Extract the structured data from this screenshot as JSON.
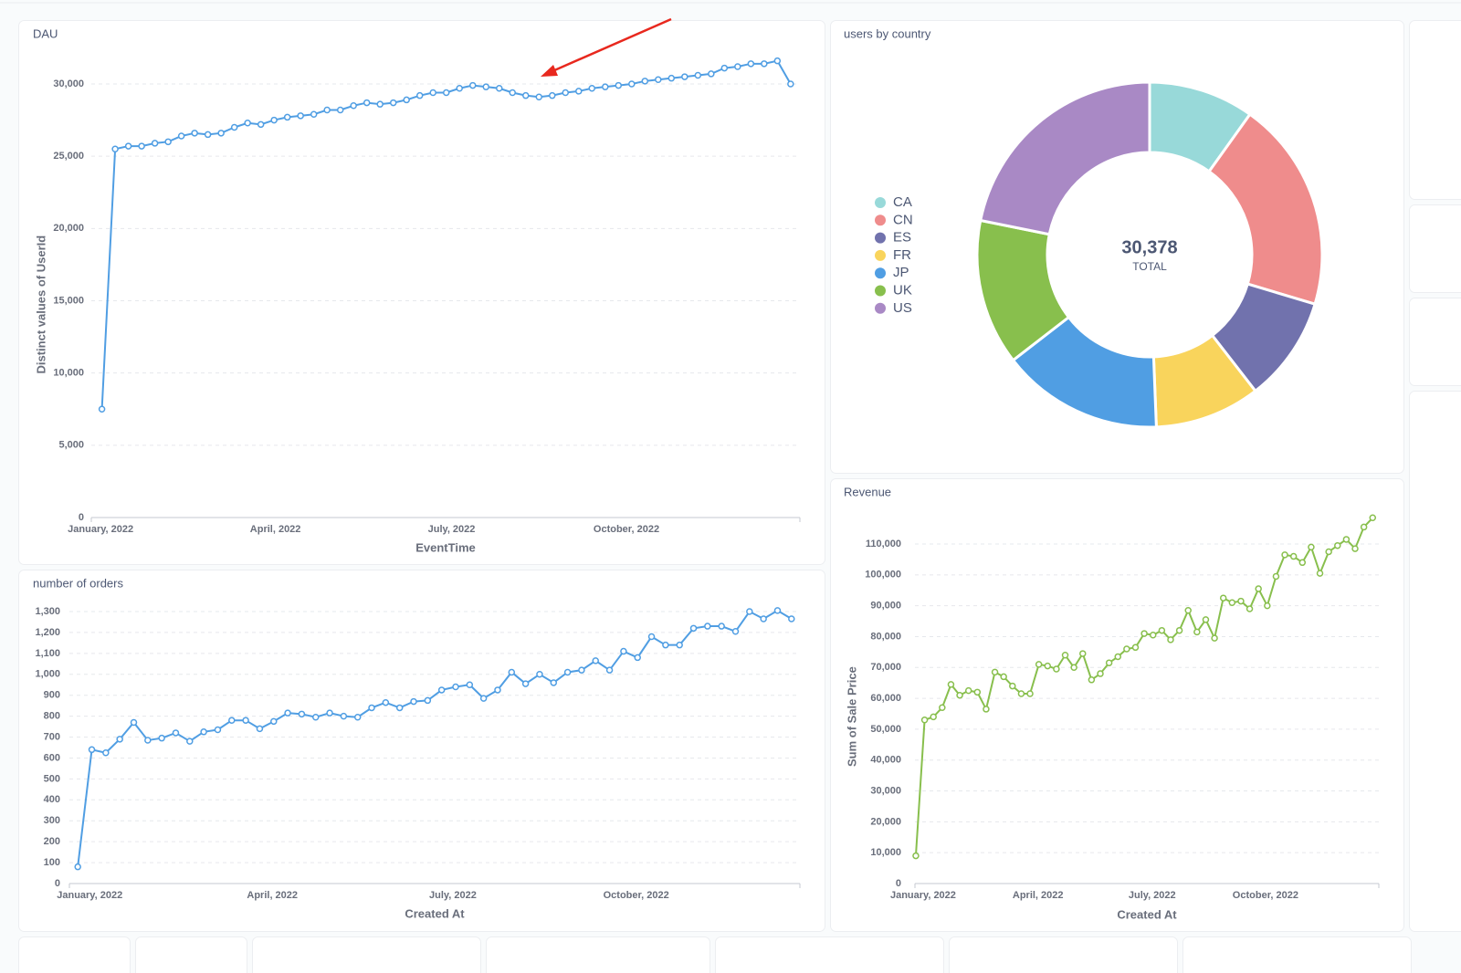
{
  "chart_data": [
    {
      "type": "line",
      "title": "DAU",
      "y_label": "Distinct values of UserId",
      "x_label": "EventTime",
      "color": "#509ee3",
      "grid": true,
      "values": [
        7500,
        25500,
        25700,
        25700,
        25900,
        26000,
        26400,
        26600,
        26500,
        26600,
        27000,
        27300,
        27200,
        27500,
        27700,
        27800,
        27900,
        28200,
        28200,
        28500,
        28700,
        28600,
        28700,
        28900,
        29200,
        29400,
        29400,
        29700,
        29900,
        29800,
        29700,
        29400,
        29200,
        29100,
        29200,
        29400,
        29500,
        29700,
        29800,
        29900,
        30000,
        30200,
        30300,
        30400,
        30500,
        30600,
        30700,
        31100,
        31200,
        31400,
        31400,
        31600,
        30000
      ],
      "xlim": [
        -0.8,
        52.7
      ],
      "xticks": [
        {
          "value": -0.1,
          "label": "January, 2022"
        },
        {
          "value": 13.1,
          "label": "April, 2022"
        },
        {
          "value": 26.4,
          "label": "July, 2022"
        },
        {
          "value": 39.6,
          "label": "October, 2022"
        }
      ],
      "ylim": [
        0,
        32000
      ],
      "yticks": [
        0,
        {
          "value": 5000,
          "label": "5,000"
        },
        {
          "value": 10000,
          "label": "10,000"
        },
        {
          "value": 15000,
          "label": "15,000"
        },
        {
          "value": 20000,
          "label": "20,000"
        },
        {
          "value": 25000,
          "label": "25,000"
        },
        {
          "value": 30000,
          "label": "30,000"
        }
      ]
    },
    {
      "type": "pie",
      "title": "users by country",
      "center_value": "30,378",
      "center_label": "TOTAL",
      "categories": [
        "CA",
        "CN",
        "ES",
        "FR",
        "JP",
        "UK",
        "US"
      ],
      "values": [
        3000,
        6000,
        3000,
        3000,
        4600,
        4150,
        6628
      ],
      "colors": [
        "#98d9d9",
        "#ef8c8c",
        "#7172ad",
        "#f9d45c",
        "#509ee3",
        "#88bf4d",
        "#a989c5"
      ]
    },
    {
      "type": "line",
      "title": "number of orders",
      "x_label": "Created At",
      "color": "#509ee3",
      "grid": true,
      "values": [
        80,
        640,
        625,
        690,
        770,
        685,
        695,
        720,
        680,
        725,
        735,
        780,
        780,
        740,
        775,
        815,
        810,
        795,
        815,
        800,
        795,
        840,
        865,
        840,
        870,
        875,
        925,
        940,
        950,
        885,
        925,
        1010,
        955,
        1000,
        960,
        1010,
        1020,
        1065,
        1020,
        1110,
        1080,
        1180,
        1140,
        1140,
        1220,
        1230,
        1230,
        1205,
        1300,
        1265,
        1305,
        1265
      ],
      "xlim": [
        -0.6,
        51.6
      ],
      "xticks": [
        {
          "value": 0.85,
          "label": "January, 2022"
        },
        {
          "value": 13.9,
          "label": "April, 2022"
        },
        {
          "value": 26.8,
          "label": "July, 2022"
        },
        {
          "value": 39.9,
          "label": "October, 2022"
        }
      ],
      "ylim": [
        0,
        1300
      ],
      "yticks": [
        0,
        100,
        200,
        300,
        400,
        500,
        600,
        700,
        800,
        900,
        {
          "value": 1000,
          "label": "1,000"
        },
        {
          "value": 1100,
          "label": "1,100"
        },
        {
          "value": 1200,
          "label": "1,200"
        },
        {
          "value": 1300,
          "label": "1,300"
        }
      ]
    },
    {
      "type": "line",
      "title": "Revenue",
      "y_label": "Sum of Sale Price",
      "x_label": "Created At",
      "color": "#88bf4d",
      "grid": true,
      "values": [
        9000,
        53000,
        54000,
        57000,
        64500,
        61000,
        62500,
        62000,
        56500,
        68500,
        67000,
        64000,
        61500,
        61500,
        71000,
        70500,
        69500,
        74000,
        70000,
        74500,
        66000,
        68000,
        71500,
        73500,
        76000,
        76500,
        81000,
        80500,
        82000,
        79000,
        82000,
        88500,
        81500,
        85500,
        79500,
        92500,
        91000,
        91500,
        89000,
        95500,
        90000,
        99500,
        106500,
        106000,
        104000,
        109000,
        100500,
        107500,
        109500,
        111500,
        108500,
        115500,
        118500
      ],
      "xlim": [
        -0.1,
        52.7
      ],
      "xticks": [
        {
          "value": 0.83,
          "label": "January, 2022"
        },
        {
          "value": 13.9,
          "label": "April, 2022"
        },
        {
          "value": 26.9,
          "label": "July, 2022"
        },
        {
          "value": 39.8,
          "label": "October, 2022"
        }
      ],
      "ylim": [
        0,
        120000
      ],
      "yticks": [
        0,
        {
          "value": 10000,
          "label": "10,000"
        },
        {
          "value": 20000,
          "label": "20,000"
        },
        {
          "value": 30000,
          "label": "30,000"
        },
        {
          "value": 40000,
          "label": "40,000"
        },
        {
          "value": 50000,
          "label": "50,000"
        },
        {
          "value": 60000,
          "label": "60,000"
        },
        {
          "value": 70000,
          "label": "70,000"
        },
        {
          "value": 80000,
          "label": "80,000"
        },
        {
          "value": 90000,
          "label": "90,000"
        },
        {
          "value": 100000,
          "label": "100,000"
        },
        {
          "value": 110000,
          "label": "110,000"
        }
      ]
    }
  ]
}
